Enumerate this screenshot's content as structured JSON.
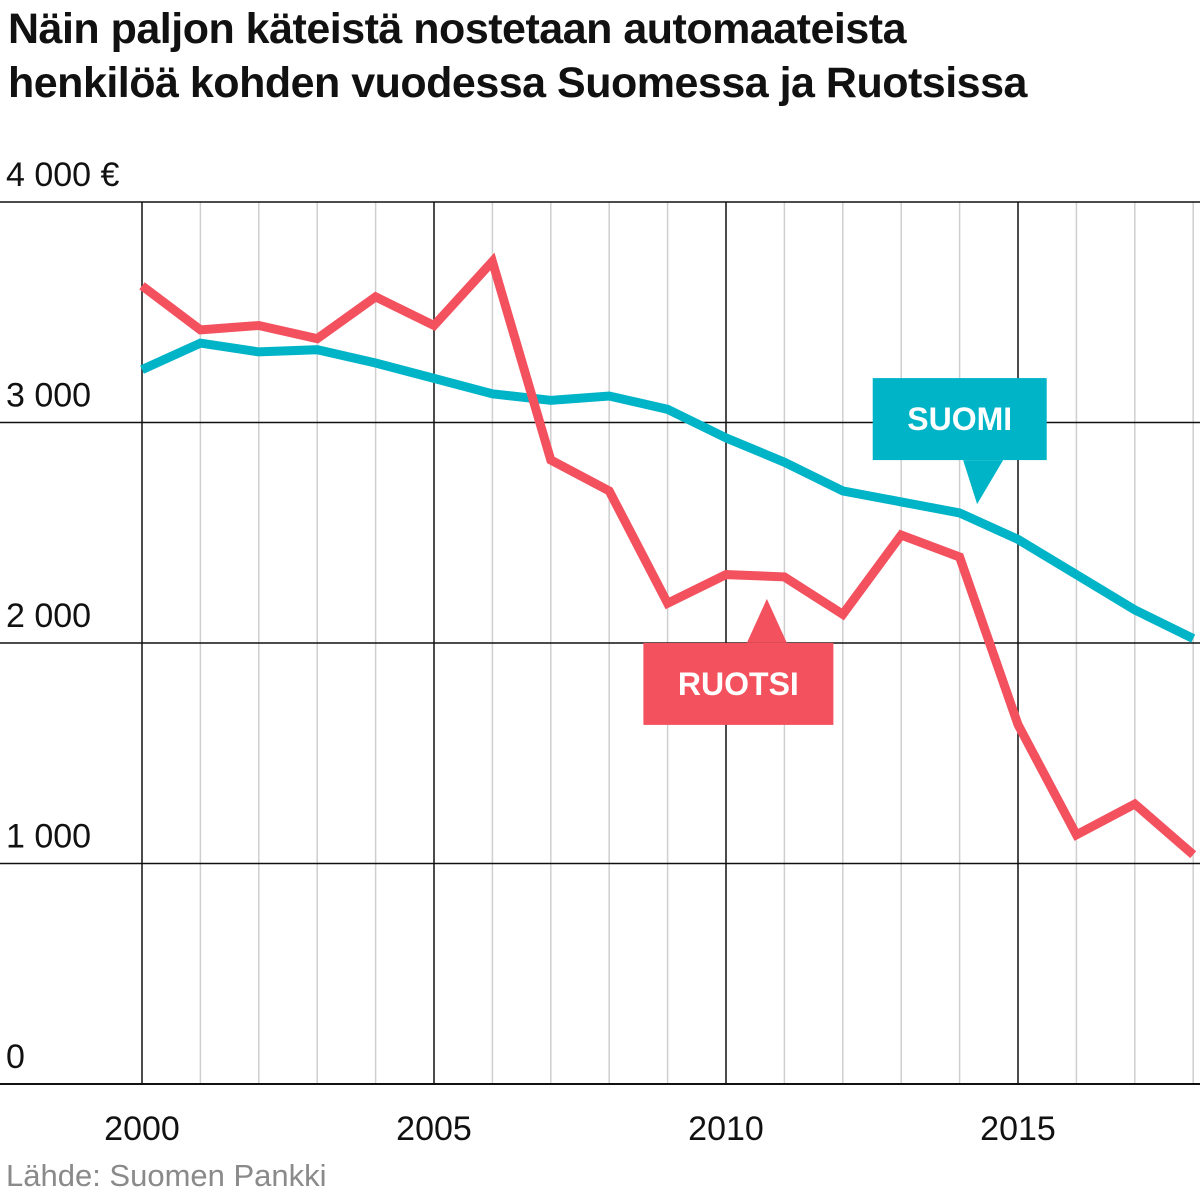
{
  "title": {
    "line1": "Näin paljon käteistä nostetaan automaateista",
    "line2": "henkilöä kohden vuodessa Suomessa ja Ruotsissa"
  },
  "source": "Lähde: Suomen Pankki",
  "colors": {
    "suomi": "#00b4c8",
    "ruotsi": "#f4515f",
    "grid_major": "#111111",
    "grid_minor": "#cfcfcf"
  },
  "chart_data": {
    "type": "line",
    "title": "Näin paljon käteistä nostetaan automaateista henkilöä kohden vuodessa Suomessa ja Ruotsissa",
    "xlabel": "",
    "ylabel": "",
    "x": [
      2000,
      2001,
      2002,
      2003,
      2004,
      2005,
      2006,
      2007,
      2008,
      2009,
      2010,
      2011,
      2012,
      2013,
      2014,
      2015,
      2016,
      2017,
      2018
    ],
    "xlim": [
      1998,
      2018.3
    ],
    "ylim": [
      0,
      4000
    ],
    "x_ticks": [
      2000,
      2005,
      2010,
      2015
    ],
    "x_tick_labels": [
      "2000",
      "2005",
      "2010",
      "2015"
    ],
    "y_ticks": [
      0,
      1000,
      2000,
      3000,
      4000
    ],
    "y_tick_labels": [
      "0",
      "1 000",
      "2 000",
      "3 000",
      "4 000 €"
    ],
    "grid": true,
    "legend": "none",
    "series": [
      {
        "name": "SUOMI",
        "color": "#00b4c8",
        "values": [
          3240,
          3360,
          3320,
          3330,
          3270,
          3200,
          3130,
          3100,
          3120,
          3060,
          2930,
          2820,
          2690,
          2640,
          2590,
          2470,
          2310,
          2150,
          2020
        ]
      },
      {
        "name": "RUOTSI",
        "color": "#f4515f",
        "values": [
          3620,
          3420,
          3440,
          3380,
          3570,
          3440,
          3730,
          2830,
          2690,
          2180,
          2310,
          2300,
          2130,
          2490,
          2390,
          1630,
          1130,
          1270,
          1040
        ]
      }
    ],
    "annotations": [
      {
        "text": "SUOMI",
        "series": "SUOMI",
        "x": 2014.3,
        "y": 2630,
        "pointer": "down"
      },
      {
        "text": "RUOTSI",
        "series": "RUOTSI",
        "x": 2010.7,
        "y": 2200,
        "pointer": "up"
      }
    ]
  }
}
